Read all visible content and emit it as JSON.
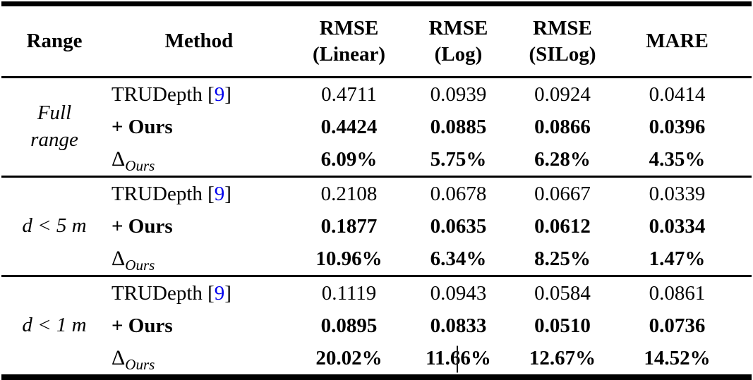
{
  "colors": {
    "text": "#000000",
    "citation_blue": "#0000EE",
    "background": "#ffffff",
    "rule_lines": "#000000"
  },
  "header": {
    "range": "Range",
    "method": "Method",
    "metrics": [
      {
        "line1": "RMSE",
        "line2": "(Linear)"
      },
      {
        "line1": "RMSE",
        "line2": "(Log)"
      },
      {
        "line1": "RMSE",
        "line2": "(SILog)"
      },
      {
        "line1": "MARE",
        "line2": ""
      }
    ]
  },
  "groups": [
    {
      "range_line1": "Full",
      "range_line2": "range",
      "rows": [
        {
          "method_prefix": "TRUDepth [",
          "citation": "9",
          "method_close": "]",
          "v": [
            "0.4711",
            "0.0939",
            "0.0924",
            "0.0414"
          ]
        },
        {
          "method": "+ Ours",
          "v": [
            "0.4424",
            "0.0885",
            "0.0866",
            "0.0396"
          ]
        },
        {
          "delta": "Δ",
          "delta_sub": "Ours",
          "v": [
            "6.09%",
            "5.75%",
            "6.28%",
            "4.35%"
          ]
        }
      ]
    },
    {
      "range_line1": "d < 5 m",
      "rows": [
        {
          "method_prefix": "TRUDepth [",
          "citation": "9",
          "method_close": "]",
          "v": [
            "0.2108",
            "0.0678",
            "0.0667",
            "0.0339"
          ]
        },
        {
          "method": "+ Ours",
          "v": [
            "0.1877",
            "0.0635",
            "0.0612",
            "0.0334"
          ]
        },
        {
          "delta": "Δ",
          "delta_sub": "Ours",
          "v": [
            "10.96%",
            "6.34%",
            "8.25%",
            "1.47%"
          ]
        }
      ]
    },
    {
      "range_line1": "d < 1 m",
      "rows": [
        {
          "method_prefix": "TRUDepth [",
          "citation": "9",
          "method_close": "]",
          "v": [
            "0.1119",
            "0.0943",
            "0.0584",
            "0.0861"
          ]
        },
        {
          "method": "+ Ours",
          "v": [
            "0.0895",
            "0.0833",
            "0.0510",
            "0.0736"
          ]
        },
        {
          "delta": "Δ",
          "delta_sub": "Ours",
          "v": [
            "20.02%",
            "11.66%",
            "12.67%",
            "14.52%"
          ]
        }
      ]
    }
  ],
  "chart_data": {
    "type": "table",
    "title": "",
    "columns": [
      "Range",
      "Method",
      "RMSE (Linear)",
      "RMSE (Log)",
      "RMSE (SILog)",
      "MARE"
    ],
    "rows": [
      [
        "Full range",
        "TRUDepth [9]",
        0.4711,
        0.0939,
        0.0924,
        0.0414
      ],
      [
        "Full range",
        "+ Ours",
        0.4424,
        0.0885,
        0.0866,
        0.0396
      ],
      [
        "Full range",
        "Δ_Ours",
        "6.09%",
        "5.75%",
        "6.28%",
        "4.35%"
      ],
      [
        "d < 5 m",
        "TRUDepth [9]",
        0.2108,
        0.0678,
        0.0667,
        0.0339
      ],
      [
        "d < 5 m",
        "+ Ours",
        0.1877,
        0.0635,
        0.0612,
        0.0334
      ],
      [
        "d < 5 m",
        "Δ_Ours",
        "10.96%",
        "6.34%",
        "8.25%",
        "1.47%"
      ],
      [
        "d < 1 m",
        "TRUDepth [9]",
        0.1119,
        0.0943,
        0.0584,
        0.0861
      ],
      [
        "d < 1 m",
        "+ Ours",
        0.0895,
        0.0833,
        0.051,
        0.0736
      ],
      [
        "d < 1 m",
        "Δ_Ours",
        "20.02%",
        "11.66%",
        "12.67%",
        "14.52%"
      ]
    ]
  }
}
